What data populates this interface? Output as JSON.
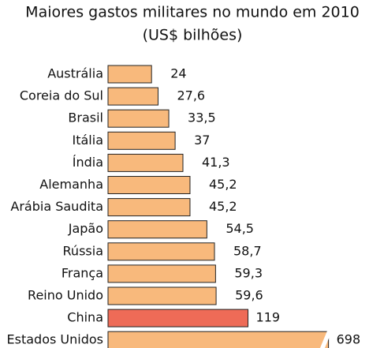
{
  "chart_data": {
    "type": "hbar",
    "title": "Maiores gastos militares no mundo em 2010",
    "subtitle": "(US$ bilhões)",
    "categories": [
      "Austrália",
      "Coreia do Sul",
      "Brasil",
      "Itália",
      "Índia",
      "Alemanha",
      "Arábia Saudita",
      "Japão",
      "Rússia",
      "França",
      "Reino Unido",
      "China",
      "Estados Unidos"
    ],
    "values": [
      24,
      27.6,
      33.5,
      37,
      41.3,
      45.2,
      45.2,
      54.5,
      58.7,
      59.3,
      59.6,
      119,
      698
    ],
    "value_labels": [
      "24",
      "27,6",
      "33,5",
      "37",
      "41,3",
      "45,2",
      "45,2",
      "54,5",
      "58,7",
      "59,3",
      "59,6",
      "119",
      "698"
    ],
    "colors": [
      "#f8b97c",
      "#f8b97c",
      "#f8b97c",
      "#f8b97c",
      "#f8b97c",
      "#f8b97c",
      "#f8b97c",
      "#f8b97c",
      "#f8b97c",
      "#f8b97c",
      "#f8b97c",
      "#ee6b57",
      "#f8b97c"
    ]
  }
}
